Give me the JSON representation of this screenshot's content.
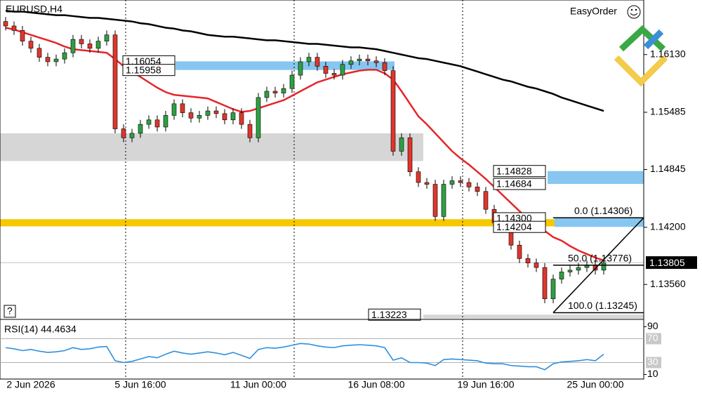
{
  "chart_data": {
    "type": "candlestick",
    "title": "EURUSD,H4",
    "categories": [
      null,
      null,
      null,
      "2 Jun 2026",
      null,
      null,
      null,
      null,
      null,
      null,
      null,
      null,
      null,
      null,
      null,
      null,
      "5 Jun 16:00",
      null,
      null,
      null,
      null,
      null,
      null,
      null,
      null,
      null,
      null,
      null,
      null,
      null,
      "11 Jun 00:00",
      null,
      null,
      null,
      null,
      null,
      null,
      null,
      null,
      null,
      null,
      null,
      null,
      null,
      "16 Jun 08:00",
      null,
      null,
      null,
      null,
      null,
      null,
      null,
      null,
      null,
      null,
      null,
      null,
      "19 Jun 16:00",
      null,
      null,
      null,
      null,
      null,
      null,
      null,
      null,
      null,
      null,
      null,
      null,
      "25 Jun 00:00",
      null
    ],
    "open": [
      1.165,
      1.1645,
      1.164,
      1.1628,
      1.162,
      1.161,
      1.1605,
      1.1608,
      1.1615,
      1.163,
      1.1625,
      1.162,
      1.1628,
      1.1635,
      1.153,
      1.152,
      1.1525,
      1.1535,
      1.154,
      1.1532,
      1.1545,
      1.1558,
      1.1548,
      1.1542,
      1.1545,
      1.155,
      1.1547,
      1.154,
      1.1548,
      1.1535,
      1.152,
      1.1565,
      1.1572,
      1.157,
      1.1575,
      1.159,
      1.1605,
      1.161,
      1.16,
      1.1592,
      1.159,
      1.1602,
      1.1606,
      1.1608,
      1.1606,
      1.1604,
      1.1595,
      1.1505,
      1.152,
      1.1482,
      1.147,
      1.1468,
      1.1432,
      1.1468,
      1.1472,
      1.147,
      1.1465,
      1.146,
      1.144,
      1.1425,
      1.1422,
      1.14,
      1.1385,
      1.138,
      1.1375,
      1.134,
      1.1362,
      1.137,
      1.1372,
      1.1375,
      1.1378,
      1.1372
    ],
    "high": [
      1.1655,
      1.165,
      1.1645,
      1.1633,
      1.1625,
      1.1615,
      1.1613,
      1.162,
      1.1635,
      1.1635,
      1.163,
      1.1633,
      1.164,
      1.164,
      1.1535,
      1.153,
      1.154,
      1.1545,
      1.1545,
      1.155,
      1.1563,
      1.1563,
      1.1553,
      1.155,
      1.1555,
      1.1555,
      1.1552,
      1.1553,
      1.1553,
      1.154,
      1.157,
      1.1577,
      1.1577,
      1.158,
      1.1595,
      1.161,
      1.1615,
      1.1615,
      1.1605,
      1.1597,
      1.1607,
      1.1611,
      1.1613,
      1.1613,
      1.1611,
      1.1609,
      1.16,
      1.1525,
      1.1525,
      1.1487,
      1.1475,
      1.1473,
      1.1473,
      1.1477,
      1.1477,
      1.1475,
      1.147,
      1.1465,
      1.1445,
      1.143,
      1.1427,
      1.1405,
      1.139,
      1.1385,
      1.138,
      1.1367,
      1.1375,
      1.1377,
      1.138,
      1.1383,
      1.1383,
      1.1385
    ],
    "low": [
      1.164,
      1.1635,
      1.1623,
      1.1615,
      1.1605,
      1.16,
      1.16,
      1.1603,
      1.161,
      1.162,
      1.1615,
      1.1615,
      1.1623,
      1.1525,
      1.1515,
      1.1515,
      1.152,
      1.153,
      1.1527,
      1.1527,
      1.154,
      1.1543,
      1.1537,
      1.1537,
      1.154,
      1.1542,
      1.1535,
      1.1535,
      1.153,
      1.1515,
      1.1515,
      1.156,
      1.1565,
      1.1565,
      1.157,
      1.1585,
      1.16,
      1.1595,
      1.1587,
      1.1585,
      1.1585,
      1.1597,
      1.1601,
      1.1601,
      1.1599,
      1.159,
      1.15,
      1.15,
      1.1477,
      1.1465,
      1.1463,
      1.1427,
      1.1427,
      1.1463,
      1.1465,
      1.146,
      1.1455,
      1.1435,
      1.142,
      1.1417,
      1.1395,
      1.138,
      1.1375,
      1.137,
      1.1335,
      1.1335,
      1.1357,
      1.1365,
      1.1367,
      1.137,
      1.1367,
      1.1367
    ],
    "close": [
      1.1645,
      1.164,
      1.1628,
      1.162,
      1.161,
      1.1605,
      1.1608,
      1.1615,
      1.163,
      1.1625,
      1.162,
      1.1628,
      1.1635,
      1.153,
      1.152,
      1.1525,
      1.1535,
      1.154,
      1.1532,
      1.1545,
      1.1558,
      1.1548,
      1.1542,
      1.1545,
      1.155,
      1.1547,
      1.154,
      1.1548,
      1.1535,
      1.152,
      1.1565,
      1.1572,
      1.157,
      1.1575,
      1.159,
      1.1605,
      1.161,
      1.16,
      1.1592,
      1.159,
      1.1602,
      1.1606,
      1.1608,
      1.1606,
      1.1604,
      1.1595,
      1.1505,
      1.152,
      1.1482,
      1.147,
      1.1468,
      1.1432,
      1.1468,
      1.1472,
      1.147,
      1.1465,
      1.146,
      1.144,
      1.1425,
      1.1422,
      1.14,
      1.1385,
      1.138,
      1.1375,
      1.134,
      1.1362,
      1.137,
      1.1372,
      1.1375,
      1.1378,
      1.1372,
      1.138
    ],
    "up_color": "#2ea043",
    "down_color": "#e0352b",
    "ylim": [
      1.1317,
      1.1674
    ],
    "yticks": [
      {
        "value": 1.1613,
        "label": "1.16130"
      },
      1.15485,
      1.14845,
      {
        "value": 1.142,
        "label": "1.14200"
      },
      {
        "value": 1.1356,
        "label": "1.13560"
      }
    ],
    "lines": [
      {
        "color": "#e5262a",
        "values": [
          1.1643,
          1.1641,
          1.1638,
          1.1635,
          1.1632,
          1.1629,
          1.1626,
          1.1622,
          1.1619,
          1.1618,
          1.1617,
          1.1616,
          1.1615,
          1.1608,
          1.16,
          1.1594,
          1.1588,
          1.1582,
          1.1576,
          1.1571,
          1.1568,
          1.1567,
          1.1566,
          1.1565,
          1.1564,
          1.156,
          1.1556,
          1.1552,
          1.1549,
          1.155,
          1.1553,
          1.1556,
          1.1559,
          1.1562,
          1.1567,
          1.1572,
          1.1577,
          1.1582,
          1.1585,
          1.1588,
          1.1591,
          1.1593,
          1.1595,
          1.1596,
          1.1596,
          1.1592,
          1.1585,
          1.1572,
          1.1558,
          1.1544,
          1.1535,
          1.1525,
          1.1515,
          1.1505,
          1.1497,
          1.149,
          1.1482,
          1.1474,
          1.1465,
          1.1456,
          1.1447,
          1.1438,
          1.143,
          1.1423,
          1.1416,
          1.1409,
          1.1405,
          1.1399,
          1.1394,
          1.139,
          1.1386,
          1.1383
        ]
      },
      {
        "color": "#000000",
        "values": [
          1.1662,
          1.1661,
          1.1661,
          1.166,
          1.1659,
          1.1658,
          1.1657,
          1.1657,
          1.1656,
          1.1655,
          1.1654,
          1.1654,
          1.1653,
          1.1652,
          1.1651,
          1.165,
          1.1648,
          1.1647,
          1.1645,
          1.1643,
          1.1642,
          1.164,
          1.1639,
          1.1637,
          1.1635,
          1.1634,
          1.1633,
          1.1633,
          1.1632,
          1.1631,
          1.163,
          1.1629,
          1.1629,
          1.1628,
          1.1627,
          1.1626,
          1.1625,
          1.1625,
          1.1624,
          1.1623,
          1.1622,
          1.1621,
          1.1621,
          1.162,
          1.1619,
          1.1617,
          1.1615,
          1.1613,
          1.1611,
          1.1609,
          1.1608,
          1.1606,
          1.1604,
          1.1602,
          1.16,
          1.1597,
          1.1594,
          1.1591,
          1.1588,
          1.1585,
          1.1583,
          1.158,
          1.1577,
          1.1575,
          1.1572,
          1.1569,
          1.1565,
          1.1562,
          1.1559,
          1.1556,
          1.1553,
          1.155
        ]
      }
    ],
    "current_price": 1.13805,
    "price_labels": [
      1.16054,
      1.15958,
      1.14828,
      1.14684,
      {
        "value": 1.143,
        "label": "1.14300"
      },
      1.14204,
      1.13223
    ],
    "zones": [
      {
        "from": 1.16054,
        "to": 1.15958,
        "color": "#87c6f0"
      },
      {
        "from": 1.1525,
        "to": 1.1494,
        "color": "#d6d6d6"
      },
      {
        "from": 1.1429,
        "to": 1.1421,
        "color": "#f5c800"
      },
      {
        "from": 1.14828,
        "to": 1.14684,
        "color": "#87c6f0"
      },
      {
        "from": 1.14306,
        "to": 1.14204,
        "color": "#87c6f0"
      },
      {
        "from": 1.13223,
        "to": 1.1318,
        "color": "#d6d6d6"
      }
    ],
    "fib_levels": [
      {
        "value": 1.14306,
        "label": "0.0 (1.14306)"
      },
      {
        "value": 1.13776,
        "label": "50.0 (1.13776)"
      },
      {
        "value": 1.13245,
        "label": "100.0 (1.13245)"
      }
    ],
    "rsi": {
      "title": "RSI(14) 44.4634",
      "color": "#2f8fde",
      "ylim": [
        0,
        100
      ],
      "yticks": [
        90,
        70,
        30,
        10
      ],
      "values": [
        55,
        53,
        50,
        52,
        49,
        47,
        48,
        50,
        55,
        52,
        53,
        56,
        57,
        33,
        30,
        32,
        36,
        40,
        38,
        44,
        49,
        46,
        44,
        46,
        48,
        46,
        43,
        47,
        42,
        37,
        52,
        55,
        54,
        56,
        59,
        62,
        61,
        58,
        56,
        55,
        58,
        59,
        60,
        59,
        58,
        55,
        34,
        38,
        30,
        30,
        29,
        25,
        35,
        36,
        35,
        34,
        33,
        29,
        28,
        28,
        25,
        24,
        23,
        23,
        18,
        28,
        31,
        32,
        33,
        35,
        33,
        44
      ]
    }
  },
  "toolbar": {
    "easy_order": "EasyOrder",
    "help": "?"
  }
}
